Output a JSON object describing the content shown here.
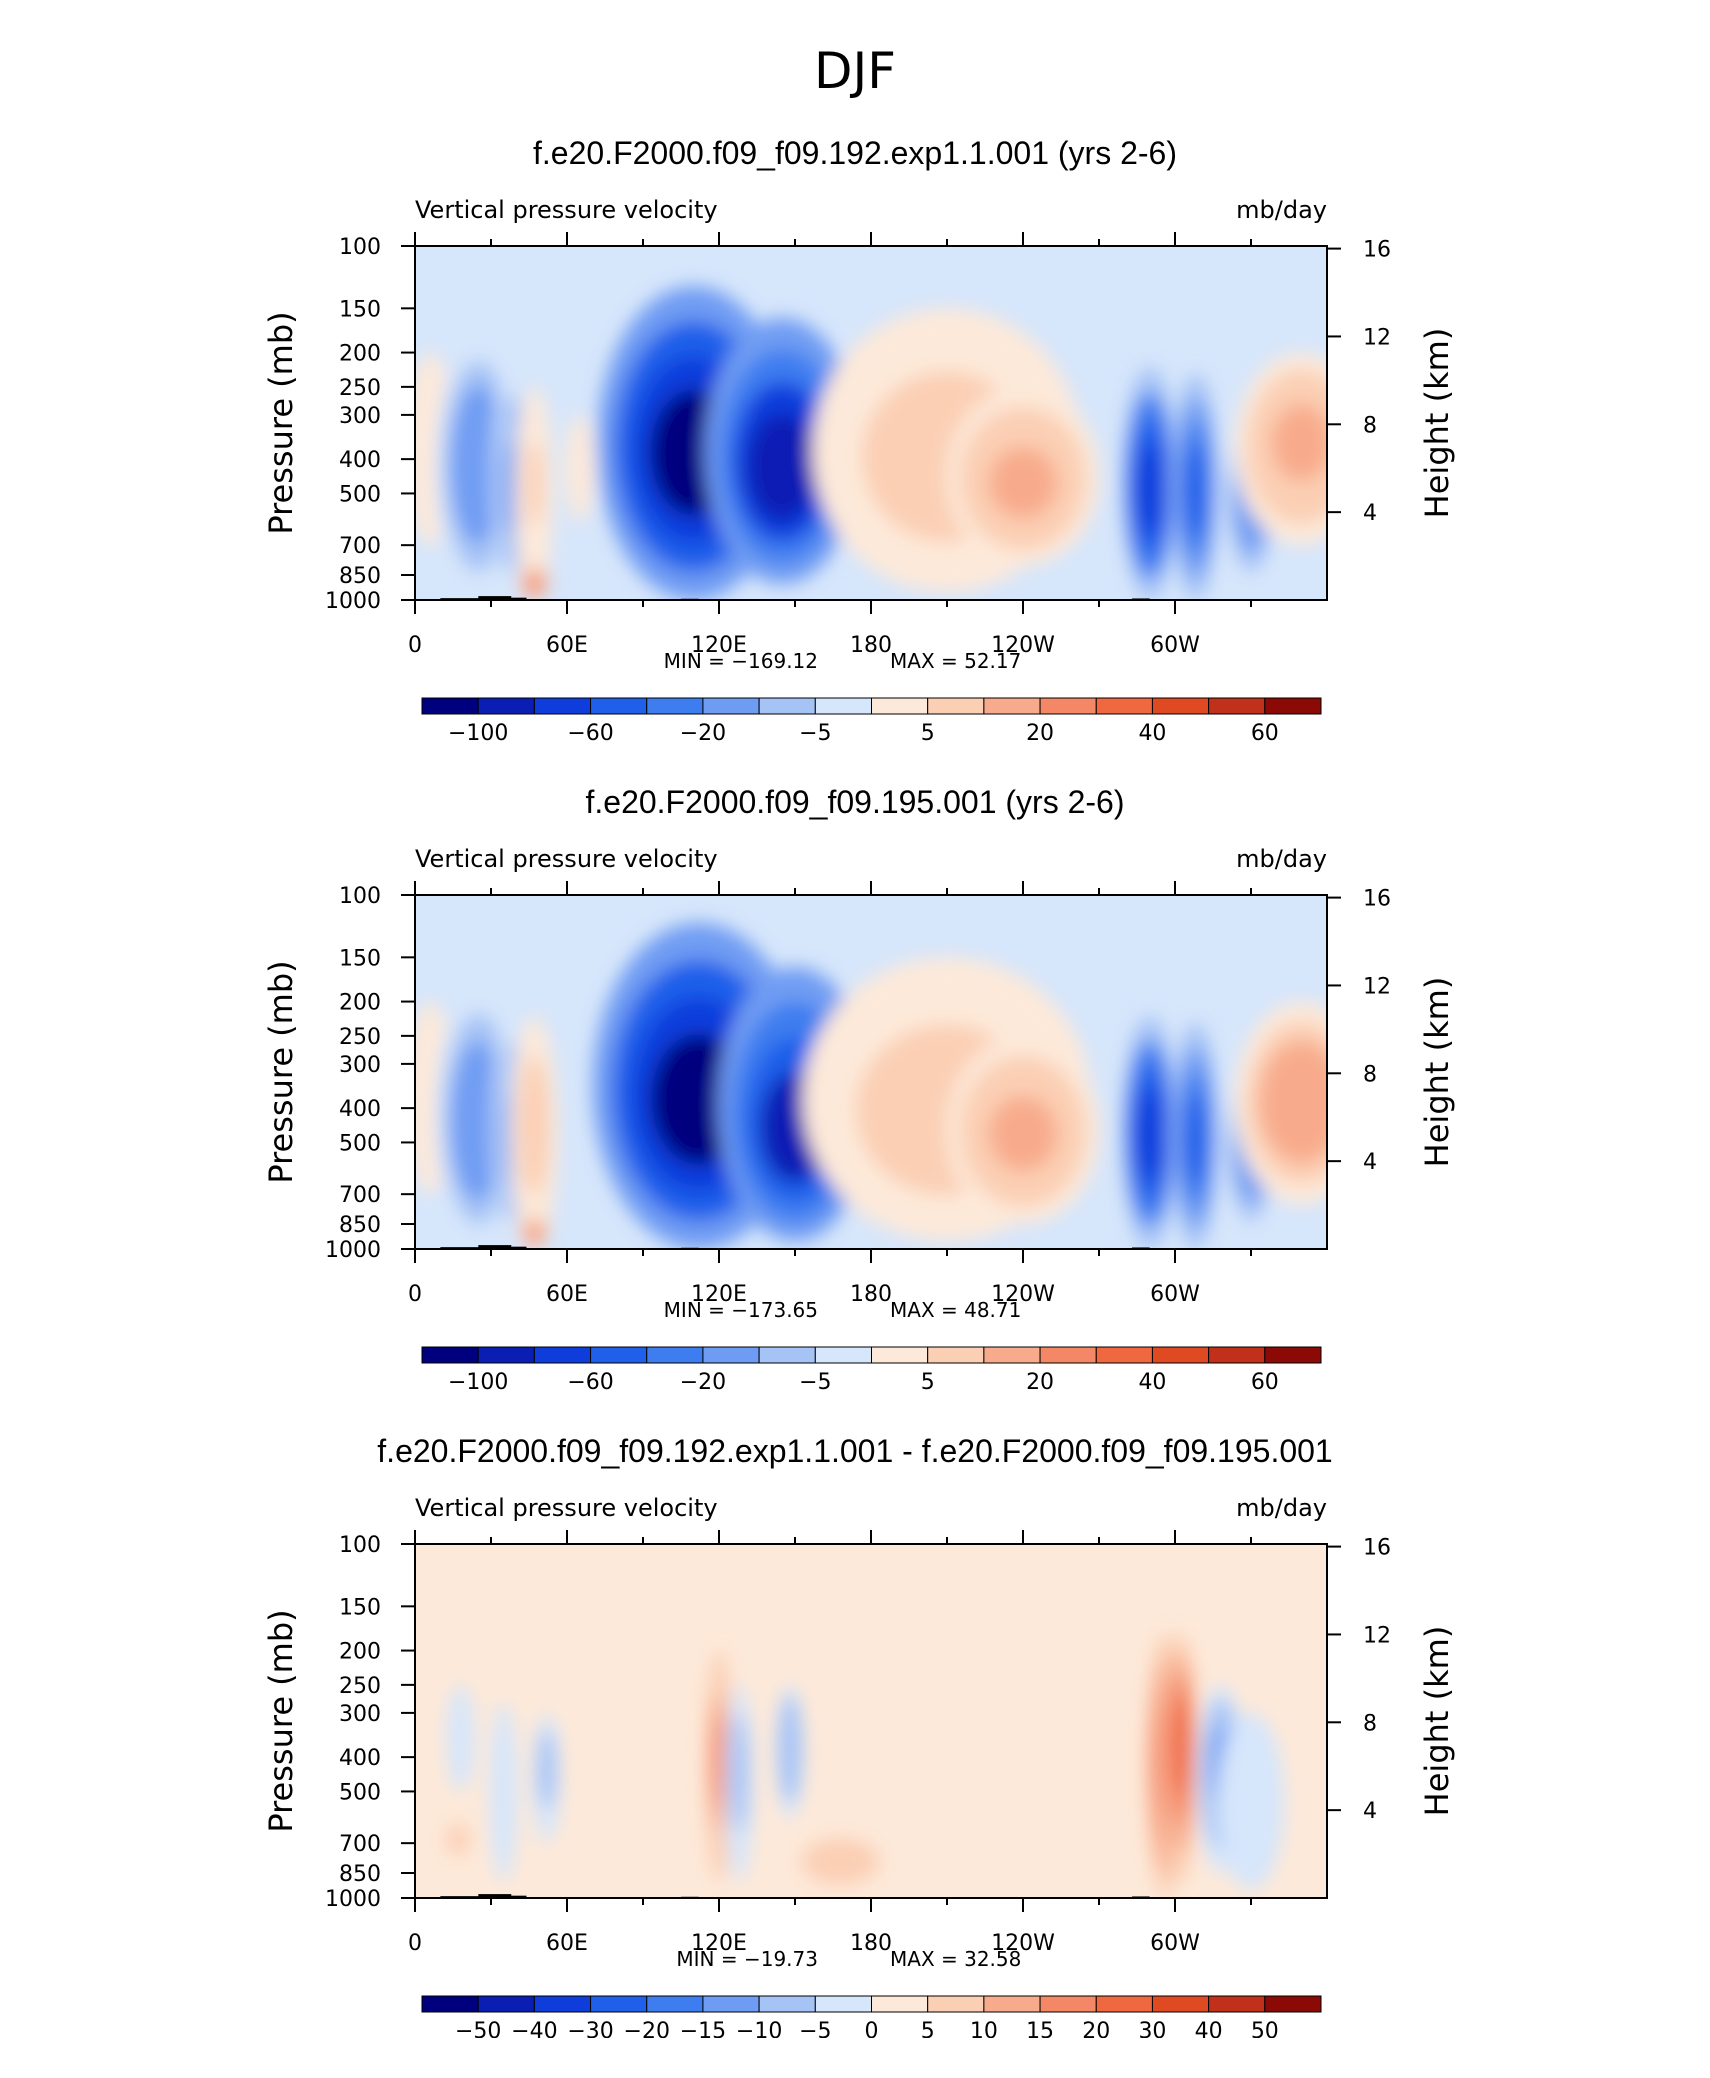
{
  "page_title": "DJF",
  "chart_data": [
    {
      "type": "heatmap",
      "title": "f.e20.F2000.f09_f09.192.exp1.1.001 (yrs 2-6)",
      "variable": "Vertical pressure velocity",
      "units": "mb/day",
      "ylabel": "Pressure (mb)",
      "ylabel_right": "Height (km)",
      "ylim": [
        1000,
        100
      ],
      "y_ticks": [
        "100",
        "150",
        "200",
        "250",
        "300",
        "400",
        "500",
        "700",
        "850",
        "1000"
      ],
      "y_right_ticks": [
        "16",
        "12",
        "8",
        "4"
      ],
      "x_ticks": [
        "0",
        "60E",
        "120E",
        "180",
        "120W",
        "60W"
      ],
      "x_range_lon": [
        0,
        360
      ],
      "min_label": "MIN = −169.12",
      "max_label": "MAX = 52.17",
      "colorbar_labels": [
        "−100",
        "−60",
        "−20",
        "−5",
        "5",
        "20",
        "40",
        "60"
      ],
      "colorbar_colors": [
        "#00007f",
        "#0a1eb4",
        "#0f3ddc",
        "#1f5fea",
        "#3d7df0",
        "#6f9cf3",
        "#a6c3f6",
        "#d6e6fb",
        "#fde9d9",
        "#fbcfb4",
        "#f8ab8c",
        "#f48866",
        "#f06840",
        "#e04a22",
        "#c0301a",
        "#8c0a06"
      ],
      "features": [
        {
          "lon": 6,
          "p": 400,
          "w": 5,
          "top": 200,
          "bottom": 700,
          "v": 8
        },
        {
          "lon": 25,
          "p": 400,
          "w": 9,
          "top": 180,
          "bottom": 1000,
          "v": -35
        },
        {
          "lon": 38,
          "p": 500,
          "w": 4,
          "top": 220,
          "bottom": 950,
          "v": -25
        },
        {
          "lon": 47,
          "p": 450,
          "w": 4,
          "top": 250,
          "bottom": 1000,
          "v": 15
        },
        {
          "lon": 47,
          "p": 920,
          "w": 3,
          "top": 800,
          "bottom": 1000,
          "v": 45
        },
        {
          "lon": 65,
          "p": 400,
          "w": 3,
          "top": 300,
          "bottom": 600,
          "v": 6
        },
        {
          "lon": 110,
          "p": 400,
          "w": 20,
          "top": 130,
          "bottom": 1000,
          "v": -90
        },
        {
          "lon": 145,
          "p": 450,
          "w": 16,
          "top": 160,
          "bottom": 900,
          "v": -80
        },
        {
          "lon": 210,
          "p": 420,
          "w": 28,
          "top": 150,
          "bottom": 950,
          "v": 18
        },
        {
          "lon": 240,
          "p": 480,
          "w": 16,
          "top": 250,
          "bottom": 800,
          "v": 30
        },
        {
          "lon": 290,
          "p": 500,
          "w": 6,
          "top": 220,
          "bottom": 1000,
          "v": -70
        },
        {
          "lon": 308,
          "p": 500,
          "w": 5,
          "top": 230,
          "bottom": 1000,
          "v": -60
        },
        {
          "lon": 330,
          "p": 500,
          "w": 6,
          "top": 280,
          "bottom": 950,
          "v": -35
        },
        {
          "lon": 350,
          "p": 350,
          "w": 14,
          "top": 200,
          "bottom": 700,
          "v": 30
        }
      ]
    },
    {
      "type": "heatmap",
      "title": "f.e20.F2000.f09_f09.195.001 (yrs 2-6)",
      "variable": "Vertical pressure velocity",
      "units": "mb/day",
      "ylabel": "Pressure (mb)",
      "ylabel_right": "Height (km)",
      "ylim": [
        1000,
        100
      ],
      "y_ticks": [
        "100",
        "150",
        "200",
        "250",
        "300",
        "400",
        "500",
        "700",
        "850",
        "1000"
      ],
      "y_right_ticks": [
        "16",
        "12",
        "8",
        "4"
      ],
      "x_ticks": [
        "0",
        "60E",
        "120E",
        "180",
        "120W",
        "60W"
      ],
      "x_range_lon": [
        0,
        360
      ],
      "min_label": "MIN = −173.65",
      "max_label": "MAX = 48.71",
      "colorbar_labels": [
        "−100",
        "−60",
        "−20",
        "−5",
        "5",
        "20",
        "40",
        "60"
      ],
      "colorbar_colors": [
        "#00007f",
        "#0a1eb4",
        "#0f3ddc",
        "#1f5fea",
        "#3d7df0",
        "#6f9cf3",
        "#a6c3f6",
        "#d6e6fb",
        "#fde9d9",
        "#fbcfb4",
        "#f8ab8c",
        "#f48866",
        "#f06840",
        "#e04a22",
        "#c0301a",
        "#8c0a06"
      ],
      "features": [
        {
          "lon": 6,
          "p": 400,
          "w": 5,
          "top": 200,
          "bottom": 700,
          "v": 10
        },
        {
          "lon": 25,
          "p": 450,
          "w": 9,
          "top": 180,
          "bottom": 1000,
          "v": -35
        },
        {
          "lon": 38,
          "p": 500,
          "w": 4,
          "top": 220,
          "bottom": 950,
          "v": -25
        },
        {
          "lon": 47,
          "p": 420,
          "w": 5,
          "top": 220,
          "bottom": 1000,
          "v": 22
        },
        {
          "lon": 47,
          "p": 920,
          "w": 3,
          "top": 800,
          "bottom": 1000,
          "v": 40
        },
        {
          "lon": 112,
          "p": 400,
          "w": 22,
          "top": 120,
          "bottom": 1000,
          "v": -95
        },
        {
          "lon": 150,
          "p": 500,
          "w": 16,
          "top": 160,
          "bottom": 950,
          "v": -75
        },
        {
          "lon": 210,
          "p": 450,
          "w": 30,
          "top": 150,
          "bottom": 950,
          "v": 18
        },
        {
          "lon": 240,
          "p": 480,
          "w": 16,
          "top": 250,
          "bottom": 850,
          "v": 28
        },
        {
          "lon": 290,
          "p": 480,
          "w": 6,
          "top": 220,
          "bottom": 1000,
          "v": -70
        },
        {
          "lon": 308,
          "p": 500,
          "w": 5,
          "top": 230,
          "bottom": 1000,
          "v": -60
        },
        {
          "lon": 330,
          "p": 500,
          "w": 6,
          "top": 280,
          "bottom": 950,
          "v": -35
        },
        {
          "lon": 350,
          "p": 380,
          "w": 14,
          "top": 200,
          "bottom": 750,
          "v": 32
        }
      ]
    },
    {
      "type": "heatmap",
      "title": "f.e20.F2000.f09_f09.192.exp1.1.001 - f.e20.F2000.f09_f09.195.001",
      "variable": "Vertical pressure velocity",
      "units": "mb/day",
      "ylabel": "Pressure (mb)",
      "ylabel_right": "Height (km)",
      "ylim": [
        1000,
        100
      ],
      "y_ticks": [
        "100",
        "150",
        "200",
        "250",
        "300",
        "400",
        "500",
        "700",
        "850",
        "1000"
      ],
      "y_right_ticks": [
        "16",
        "12",
        "8",
        "4"
      ],
      "x_ticks": [
        "0",
        "60E",
        "120E",
        "180",
        "120W",
        "60W"
      ],
      "x_range_lon": [
        0,
        360
      ],
      "min_label": "MIN = −19.73",
      "max_label": "MAX = 32.58",
      "colorbar_labels": [
        "−50",
        "−40",
        "−30",
        "−20",
        "−15",
        "−10",
        "−5",
        "0",
        "5",
        "10",
        "15",
        "20",
        "30",
        "40",
        "50"
      ],
      "colorbar_colors": [
        "#00007f",
        "#0a1eb4",
        "#0f3ddc",
        "#1f5fea",
        "#3d7df0",
        "#6f9cf3",
        "#a6c3f6",
        "#d6e6fb",
        "#fde9d9",
        "#fbcfb4",
        "#f8ab8c",
        "#f48866",
        "#f06840",
        "#e04a22",
        "#c0301a",
        "#8c0a06"
      ],
      "features": [
        {
          "lon": 17,
          "p": 680,
          "w": 3,
          "top": 600,
          "bottom": 780,
          "v": 12
        },
        {
          "lon": 18,
          "p": 350,
          "w": 3,
          "top": 250,
          "bottom": 500,
          "v": -6
        },
        {
          "lon": 35,
          "p": 350,
          "w": 3,
          "top": 280,
          "bottom": 900,
          "v": -6
        },
        {
          "lon": 52,
          "p": 400,
          "w": 3,
          "top": 300,
          "bottom": 700,
          "v": -8
        },
        {
          "lon": 120,
          "p": 400,
          "w": 3,
          "top": 200,
          "bottom": 900,
          "v": 20
        },
        {
          "lon": 128,
          "p": 400,
          "w": 3,
          "top": 250,
          "bottom": 900,
          "v": -10
        },
        {
          "lon": 148,
          "p": 350,
          "w": 3,
          "top": 250,
          "bottom": 600,
          "v": -12
        },
        {
          "lon": 168,
          "p": 800,
          "w": 10,
          "top": 650,
          "bottom": 950,
          "v": 12
        },
        {
          "lon": 296,
          "p": 400,
          "w": 4,
          "top": 180,
          "bottom": 1000,
          "v": 25
        },
        {
          "lon": 302,
          "p": 350,
          "w": 4,
          "top": 180,
          "bottom": 900,
          "v": 30
        },
        {
          "lon": 318,
          "p": 400,
          "w": 5,
          "top": 250,
          "bottom": 850,
          "v": -14
        },
        {
          "lon": 330,
          "p": 550,
          "w": 7,
          "top": 300,
          "bottom": 950,
          "v": -6
        }
      ]
    }
  ]
}
